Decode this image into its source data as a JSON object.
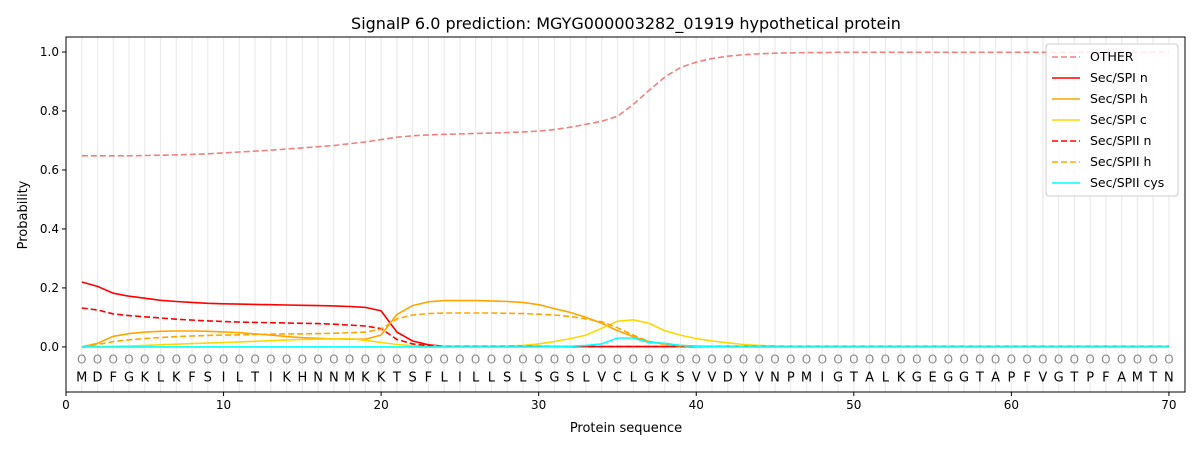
{
  "chart_data": {
    "type": "line",
    "title": "SignalP 6.0 prediction: MGYG000003282_01919 hypothetical protein",
    "xlabel": "Protein sequence",
    "ylabel": "Probability",
    "xlim": [
      0,
      71.02
    ],
    "ylim": [
      -0.153,
      1.051
    ],
    "xticks": [
      0,
      10,
      20,
      30,
      40,
      50,
      60,
      70
    ],
    "yticks": [
      0.0,
      0.2,
      0.4,
      0.6,
      0.8,
      1.0
    ],
    "xtick_labels": [
      "0",
      "10",
      "20",
      "30",
      "40",
      "50",
      "60",
      "70"
    ],
    "ytick_labels": [
      "0.0",
      "0.2",
      "0.4",
      "0.6",
      "0.8",
      "1.0"
    ],
    "legend_position": "top-right",
    "sequence": [
      "M",
      "D",
      "F",
      "G",
      "K",
      "L",
      "K",
      "F",
      "S",
      "I",
      "L",
      "T",
      "I",
      "K",
      "H",
      "N",
      "N",
      "M",
      "K",
      "K",
      "T",
      "S",
      "F",
      "L",
      "I",
      "L",
      "L",
      "S",
      "L",
      "S",
      "G",
      "S",
      "L",
      "V",
      "C",
      "L",
      "G",
      "K",
      "S",
      "V",
      "V",
      "D",
      "Y",
      "V",
      "N",
      "P",
      "M",
      "I",
      "G",
      "T",
      "A",
      "L",
      "K",
      "G",
      "E",
      "G",
      "G",
      "T",
      "A",
      "P",
      "F",
      "V",
      "G",
      "T",
      "P",
      "F",
      "A",
      "M",
      "T",
      "N"
    ],
    "region_marker": "O",
    "series": [
      {
        "name": "OTHER",
        "color": "#f08080",
        "dash": true,
        "values": [
          0.648,
          0.648,
          0.648,
          0.648,
          0.649,
          0.65,
          0.651,
          0.653,
          0.655,
          0.658,
          0.661,
          0.664,
          0.667,
          0.671,
          0.675,
          0.679,
          0.683,
          0.689,
          0.695,
          0.703,
          0.711,
          0.716,
          0.719,
          0.721,
          0.722,
          0.724,
          0.725,
          0.727,
          0.729,
          0.732,
          0.737,
          0.745,
          0.755,
          0.765,
          0.782,
          0.822,
          0.87,
          0.915,
          0.948,
          0.966,
          0.978,
          0.986,
          0.991,
          0.994,
          0.996,
          0.997,
          0.998,
          0.998,
          0.999,
          0.999,
          0.999,
          0.999,
          0.999,
          0.999,
          0.999,
          0.999,
          0.999,
          0.999,
          0.999,
          0.999,
          0.999,
          0.999,
          0.999,
          0.999,
          0.999,
          0.999,
          0.999,
          0.999,
          0.999,
          0.999
        ]
      },
      {
        "name": "Sec/SPI n",
        "color": "#ff0000",
        "dash": false,
        "values": [
          0.22,
          0.205,
          0.182,
          0.172,
          0.165,
          0.158,
          0.154,
          0.151,
          0.148,
          0.146,
          0.145,
          0.144,
          0.143,
          0.142,
          0.141,
          0.14,
          0.139,
          0.137,
          0.134,
          0.122,
          0.05,
          0.02,
          0.007,
          0.002,
          0.001,
          0.001,
          0.001,
          0.001,
          0.001,
          0.001,
          0.001,
          0.001,
          0.001,
          0.001,
          0.001,
          0.001,
          0.001,
          0.001,
          0.001,
          0.001,
          0.001,
          0.001,
          0.001,
          0.001,
          0.001,
          0.001,
          0.001,
          0.001,
          0.001,
          0.001,
          0.001,
          0.001,
          0.001,
          0.001,
          0.001,
          0.001,
          0.001,
          0.001,
          0.001,
          0.001,
          0.001,
          0.001,
          0.001,
          0.001,
          0.001,
          0.001,
          0.001,
          0.001,
          0.001,
          0.001
        ]
      },
      {
        "name": "Sec/SPI h",
        "color": "#ffa500",
        "dash": false,
        "values": [
          0.0,
          0.012,
          0.036,
          0.045,
          0.05,
          0.053,
          0.054,
          0.054,
          0.053,
          0.051,
          0.048,
          0.044,
          0.04,
          0.035,
          0.031,
          0.029,
          0.027,
          0.026,
          0.026,
          0.04,
          0.11,
          0.14,
          0.153,
          0.157,
          0.157,
          0.157,
          0.156,
          0.154,
          0.151,
          0.143,
          0.13,
          0.117,
          0.1,
          0.08,
          0.055,
          0.035,
          0.018,
          0.01,
          0.005,
          0.003,
          0.002,
          0.001,
          0.001,
          0.001,
          0.001,
          0.001,
          0.001,
          0.001,
          0.001,
          0.001,
          0.001,
          0.001,
          0.001,
          0.001,
          0.001,
          0.001,
          0.001,
          0.001,
          0.001,
          0.001,
          0.001,
          0.001,
          0.001,
          0.001,
          0.001,
          0.001,
          0.001,
          0.001,
          0.001,
          0.001
        ]
      },
      {
        "name": "Sec/SPI c",
        "color": "#ffd700",
        "dash": false,
        "values": [
          0.0,
          0.001,
          0.002,
          0.003,
          0.005,
          0.007,
          0.009,
          0.011,
          0.013,
          0.015,
          0.017,
          0.019,
          0.021,
          0.023,
          0.025,
          0.026,
          0.027,
          0.028,
          0.022,
          0.015,
          0.008,
          0.004,
          0.003,
          0.003,
          0.003,
          0.003,
          0.003,
          0.003,
          0.005,
          0.01,
          0.018,
          0.028,
          0.04,
          0.063,
          0.087,
          0.092,
          0.08,
          0.055,
          0.04,
          0.028,
          0.02,
          0.014,
          0.008,
          0.005,
          0.003,
          0.002,
          0.001,
          0.001,
          0.001,
          0.001,
          0.001,
          0.001,
          0.001,
          0.001,
          0.001,
          0.001,
          0.001,
          0.001,
          0.001,
          0.001,
          0.001,
          0.001,
          0.001,
          0.001,
          0.001,
          0.001,
          0.001,
          0.001,
          0.001,
          0.001
        ]
      },
      {
        "name": "Sec/SPII n",
        "color": "#ff0000",
        "dash": true,
        "values": [
          0.132,
          0.125,
          0.112,
          0.106,
          0.102,
          0.098,
          0.094,
          0.091,
          0.088,
          0.086,
          0.084,
          0.083,
          0.082,
          0.081,
          0.08,
          0.079,
          0.077,
          0.074,
          0.071,
          0.062,
          0.025,
          0.01,
          0.004,
          0.001,
          0.001,
          0.001,
          0.001,
          0.001,
          0.001,
          0.001,
          0.001,
          0.001,
          0.001,
          0.001,
          0.001,
          0.001,
          0.001,
          0.001,
          0.001,
          0.001,
          0.001,
          0.001,
          0.001,
          0.001,
          0.001,
          0.001,
          0.001,
          0.001,
          0.001,
          0.001,
          0.001,
          0.001,
          0.001,
          0.001,
          0.001,
          0.001,
          0.001,
          0.001,
          0.001,
          0.001,
          0.001,
          0.001,
          0.001,
          0.001,
          0.001,
          0.001,
          0.001,
          0.001,
          0.001,
          0.001
        ]
      },
      {
        "name": "Sec/SPII h",
        "color": "#ffa500",
        "dash": true,
        "values": [
          0.0,
          0.008,
          0.018,
          0.024,
          0.028,
          0.032,
          0.035,
          0.037,
          0.039,
          0.04,
          0.041,
          0.042,
          0.043,
          0.044,
          0.044,
          0.045,
          0.046,
          0.048,
          0.05,
          0.06,
          0.095,
          0.108,
          0.113,
          0.115,
          0.115,
          0.115,
          0.115,
          0.114,
          0.113,
          0.111,
          0.108,
          0.103,
          0.095,
          0.085,
          0.065,
          0.04,
          0.018,
          0.008,
          0.003,
          0.002,
          0.001,
          0.001,
          0.001,
          0.001,
          0.001,
          0.001,
          0.001,
          0.001,
          0.001,
          0.001,
          0.001,
          0.001,
          0.001,
          0.001,
          0.001,
          0.001,
          0.001,
          0.001,
          0.001,
          0.001,
          0.001,
          0.001,
          0.001,
          0.001,
          0.001,
          0.001,
          0.001,
          0.001,
          0.001,
          0.001
        ]
      },
      {
        "name": "Sec/SPII cys",
        "color": "#00ffff",
        "dash": false,
        "values": [
          0,
          0,
          0,
          0,
          0,
          0,
          0,
          0,
          0,
          0,
          0,
          0,
          0,
          0,
          0,
          0,
          0,
          0,
          0,
          0,
          0,
          0,
          0,
          0,
          0,
          0,
          0,
          0,
          0,
          0,
          0.001,
          0.002,
          0.005,
          0.01,
          0.03,
          0.03,
          0.015,
          0.012,
          0.005,
          0.002,
          0.001,
          0,
          0,
          0,
          0,
          0,
          0,
          0,
          0,
          0,
          0,
          0,
          0,
          0,
          0,
          0,
          0,
          0,
          0,
          0,
          0,
          0,
          0,
          0,
          0,
          0,
          0,
          0,
          0,
          0
        ]
      }
    ]
  }
}
